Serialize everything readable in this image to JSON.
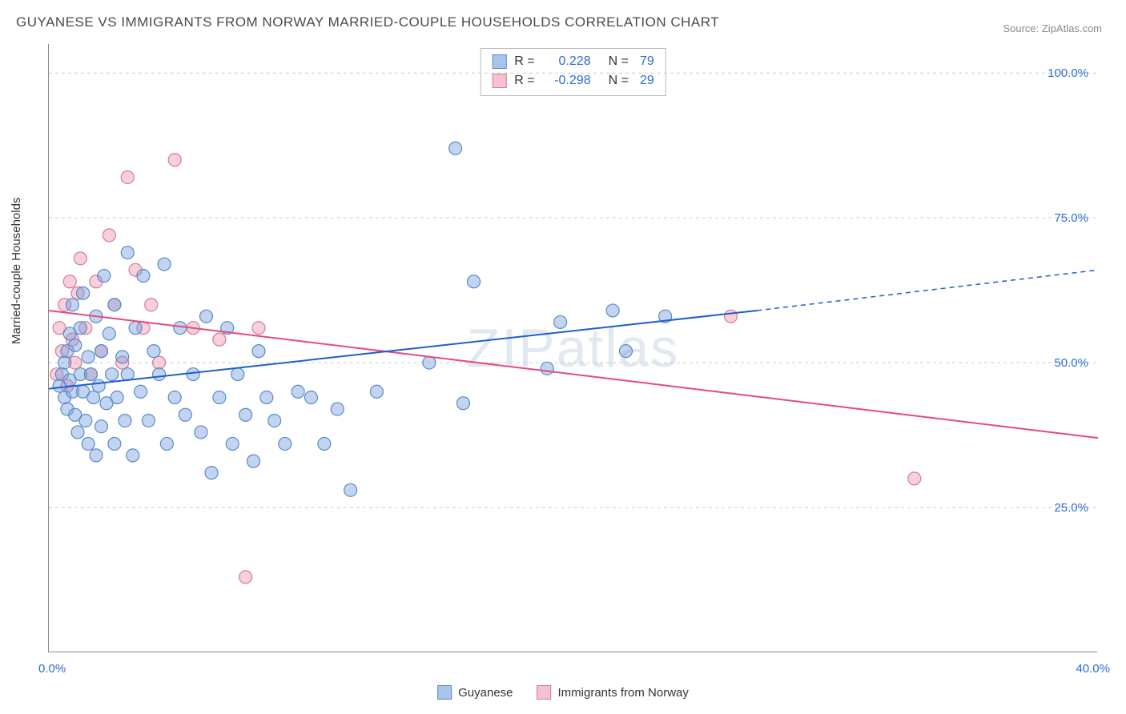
{
  "title": "GUYANESE VS IMMIGRANTS FROM NORWAY MARRIED-COUPLE HOUSEHOLDS CORRELATION CHART",
  "source": "Source: ZipAtlas.com",
  "ylabel": "Married-couple Households",
  "watermark": "ZIPatlas",
  "chart": {
    "type": "scatter",
    "background_color": "#ffffff",
    "grid_color": "#cccccc",
    "axis_color": "#888888",
    "xlim": [
      0,
      40
    ],
    "ylim": [
      0,
      105
    ],
    "x_ticks": [
      0,
      5,
      10,
      15,
      20,
      25,
      30,
      35,
      40
    ],
    "x_tick_labels": {
      "0": "0.0%",
      "40": "40.0%"
    },
    "y_ticks": [
      25,
      50,
      75,
      100
    ],
    "y_tick_labels": [
      "25.0%",
      "50.0%",
      "75.0%",
      "100.0%"
    ],
    "marker_radius": 8,
    "marker_stroke_width": 1.2,
    "line_width": 2,
    "label_color": "#2b6cd4",
    "title_color": "#4a4a4a",
    "title_fontsize": 17,
    "label_fontsize": 15
  },
  "series": [
    {
      "name": "Guyanese",
      "fill_color": "rgba(120,160,220,0.45)",
      "stroke_color": "#5a8acb",
      "swatch_fill": "#a8c4ea",
      "swatch_border": "#5a8acb",
      "R": "0.228",
      "N": "79",
      "trend_line": {
        "x1": 0,
        "y1": 45.5,
        "x2": 27,
        "y2": 59,
        "x2_ext": 40,
        "y2_ext": 66,
        "color": "#1e5dcf",
        "dash_color": "#1e5dcf"
      },
      "points": [
        [
          0.4,
          46
        ],
        [
          0.5,
          48
        ],
        [
          0.6,
          44
        ],
        [
          0.6,
          50
        ],
        [
          0.7,
          52
        ],
        [
          0.7,
          42
        ],
        [
          0.8,
          55
        ],
        [
          0.8,
          47
        ],
        [
          0.9,
          60
        ],
        [
          0.9,
          45
        ],
        [
          1.0,
          41
        ],
        [
          1.0,
          53
        ],
        [
          1.1,
          38
        ],
        [
          1.2,
          48
        ],
        [
          1.2,
          56
        ],
        [
          1.3,
          45
        ],
        [
          1.3,
          62
        ],
        [
          1.4,
          40
        ],
        [
          1.5,
          51
        ],
        [
          1.5,
          36
        ],
        [
          1.6,
          48
        ],
        [
          1.7,
          44
        ],
        [
          1.8,
          58
        ],
        [
          1.8,
          34
        ],
        [
          1.9,
          46
        ],
        [
          2.0,
          52
        ],
        [
          2.0,
          39
        ],
        [
          2.1,
          65
        ],
        [
          2.2,
          43
        ],
        [
          2.3,
          55
        ],
        [
          2.4,
          48
        ],
        [
          2.5,
          36
        ],
        [
          2.5,
          60
        ],
        [
          2.6,
          44
        ],
        [
          2.8,
          51
        ],
        [
          2.9,
          40
        ],
        [
          3.0,
          69
        ],
        [
          3.0,
          48
        ],
        [
          3.2,
          34
        ],
        [
          3.3,
          56
        ],
        [
          3.5,
          45
        ],
        [
          3.6,
          65
        ],
        [
          3.8,
          40
        ],
        [
          4.0,
          52
        ],
        [
          4.2,
          48
        ],
        [
          4.4,
          67
        ],
        [
          4.5,
          36
        ],
        [
          4.8,
          44
        ],
        [
          5.0,
          56
        ],
        [
          5.2,
          41
        ],
        [
          5.5,
          48
        ],
        [
          5.8,
          38
        ],
        [
          6.0,
          58
        ],
        [
          6.2,
          31
        ],
        [
          6.5,
          44
        ],
        [
          6.8,
          56
        ],
        [
          7.0,
          36
        ],
        [
          7.2,
          48
        ],
        [
          7.5,
          41
        ],
        [
          7.8,
          33
        ],
        [
          8.0,
          52
        ],
        [
          8.3,
          44
        ],
        [
          8.6,
          40
        ],
        [
          9.0,
          36
        ],
        [
          9.5,
          45
        ],
        [
          10.0,
          44
        ],
        [
          10.5,
          36
        ],
        [
          11.0,
          42
        ],
        [
          11.5,
          28
        ],
        [
          12.5,
          45
        ],
        [
          14.5,
          50
        ],
        [
          15.5,
          87
        ],
        [
          15.8,
          43
        ],
        [
          16.2,
          64
        ],
        [
          19.0,
          49
        ],
        [
          19.5,
          57
        ],
        [
          21.5,
          59
        ],
        [
          22.0,
          52
        ],
        [
          23.5,
          58
        ]
      ]
    },
    {
      "name": "Immigrants from Norway",
      "fill_color": "rgba(235,150,175,0.45)",
      "stroke_color": "#d67a96",
      "swatch_fill": "#f4c3d1",
      "swatch_border": "#d67a96",
      "R": "-0.298",
      "N": "29",
      "trend_line": {
        "x1": 0,
        "y1": 59,
        "x2": 40,
        "y2": 37,
        "color": "#e64a7a"
      },
      "points": [
        [
          0.3,
          48
        ],
        [
          0.4,
          56
        ],
        [
          0.5,
          52
        ],
        [
          0.6,
          60
        ],
        [
          0.7,
          46
        ],
        [
          0.8,
          64
        ],
        [
          0.9,
          54
        ],
        [
          1.0,
          50
        ],
        [
          1.1,
          62
        ],
        [
          1.2,
          68
        ],
        [
          1.4,
          56
        ],
        [
          1.6,
          48
        ],
        [
          1.8,
          64
        ],
        [
          2.0,
          52
        ],
        [
          2.3,
          72
        ],
        [
          2.5,
          60
        ],
        [
          2.8,
          50
        ],
        [
          3.0,
          82
        ],
        [
          3.3,
          66
        ],
        [
          3.6,
          56
        ],
        [
          3.9,
          60
        ],
        [
          4.2,
          50
        ],
        [
          4.8,
          85
        ],
        [
          5.5,
          56
        ],
        [
          6.5,
          54
        ],
        [
          7.5,
          13
        ],
        [
          8.0,
          56
        ],
        [
          26.0,
          58
        ],
        [
          33.0,
          30
        ]
      ]
    }
  ],
  "legend": {
    "series1_label": "Guyanese",
    "series2_label": "Immigrants from Norway"
  }
}
